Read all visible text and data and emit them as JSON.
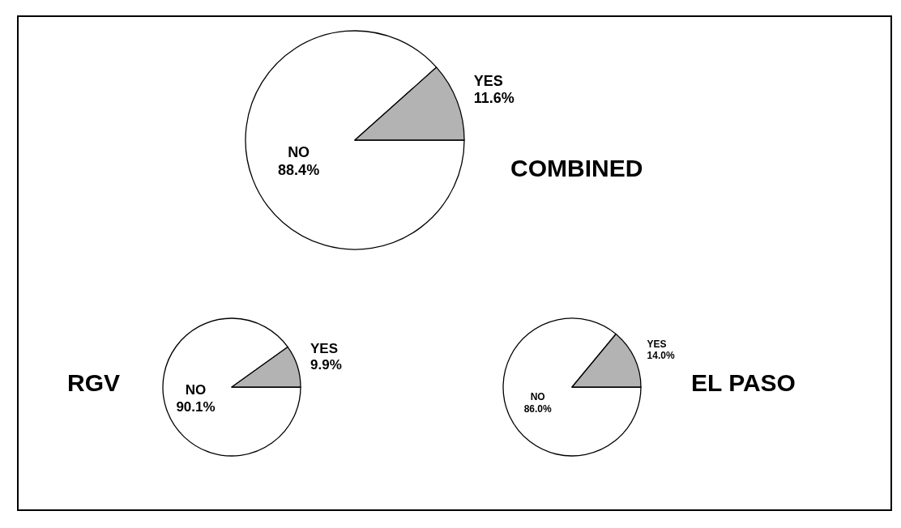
{
  "chart_data": [
    {
      "type": "pie",
      "title": "COMBINED",
      "categories": [
        "NO",
        "YES"
      ],
      "values": [
        88.4,
        11.6
      ],
      "value_labels": [
        "88.4%",
        "11.6%"
      ],
      "colors": [
        "#ffffff",
        "#b3b3b3"
      ]
    },
    {
      "type": "pie",
      "title": "RGV",
      "categories": [
        "NO",
        "YES"
      ],
      "values": [
        90.1,
        9.9
      ],
      "value_labels": [
        "90.1%",
        "9.9%"
      ],
      "colors": [
        "#ffffff",
        "#b3b3b3"
      ]
    },
    {
      "type": "pie",
      "title": "EL PASO",
      "categories": [
        "NO",
        "YES"
      ],
      "values": [
        86.0,
        14.0
      ],
      "value_labels": [
        "86.0%",
        "14.0%"
      ],
      "colors": [
        "#ffffff",
        "#b3b3b3"
      ]
    }
  ]
}
